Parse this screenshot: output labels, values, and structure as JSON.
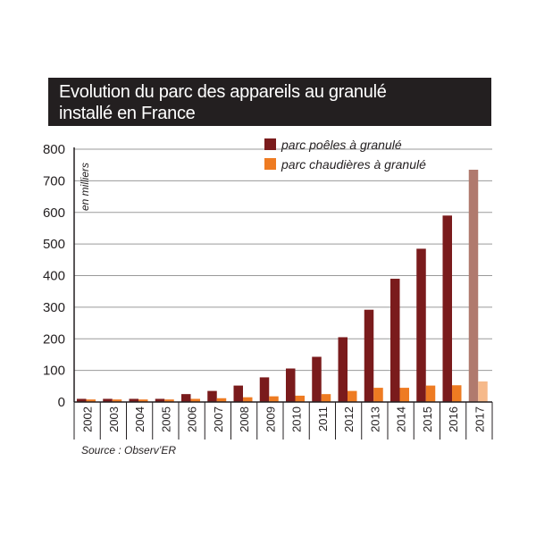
{
  "header": {
    "title_line1": "Evolution du parc des appareils au granulé",
    "title_line2": "installé en France"
  },
  "source": "Source : Observ’ER",
  "colors": {
    "stoves": "#7a1b1c",
    "boilers": "#ee7b22",
    "stoves_estimate": "#b07a6e",
    "boilers_estimate": "#f6b98a"
  },
  "chart_data": {
    "type": "bar",
    "categories": [
      "2002",
      "2003",
      "2004",
      "2005",
      "2006",
      "2007",
      "2008",
      "2009",
      "2010",
      "2011",
      "2012",
      "2013",
      "2014",
      "2015",
      "2016",
      "2017"
    ],
    "series": [
      {
        "name": "parc poêles à granulé",
        "values": [
          10,
          10,
          10,
          10,
          25,
          35,
          52,
          78,
          106,
          143,
          205,
          292,
          390,
          485,
          590,
          735
        ]
      },
      {
        "name": "parc chaudières à granulé",
        "values": [
          8,
          8,
          8,
          8,
          10,
          12,
          15,
          18,
          20,
          25,
          35,
          45,
          45,
          52,
          53,
          65
        ]
      }
    ],
    "ylabel": "en milliers",
    "xlabel": "",
    "ylim": [
      0,
      800
    ],
    "yticks": [
      0,
      100,
      200,
      300,
      400,
      500,
      600,
      700,
      800
    ],
    "legend": "top-right",
    "grid": true
  }
}
